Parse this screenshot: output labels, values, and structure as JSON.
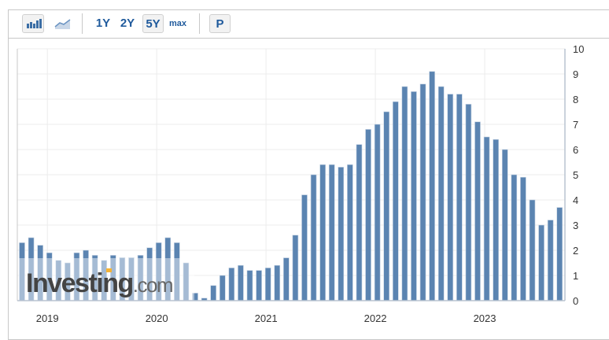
{
  "toolbar": {
    "chart_type_buttons": [
      {
        "icon": "bar-chart-icon",
        "selected": true
      },
      {
        "icon": "area-chart-icon",
        "selected": false
      }
    ],
    "ranges": [
      {
        "label": "1Y",
        "selected": false
      },
      {
        "label": "2Y",
        "selected": false
      },
      {
        "label": "5Y",
        "selected": true
      },
      {
        "label": "max",
        "selected": false
      }
    ],
    "p_label": "P"
  },
  "watermark": "Investing.com",
  "colors": {
    "bar": "#5b84b1",
    "grid": "#ececec",
    "axis": "#b9c3d0"
  },
  "chart_data": {
    "type": "bar",
    "x_tick_labels": [
      "2019",
      "2020",
      "2021",
      "2022",
      "2023"
    ],
    "values": [
      2.3,
      2.5,
      2.2,
      1.9,
      1.6,
      1.5,
      1.9,
      2.0,
      1.8,
      1.6,
      1.8,
      1.7,
      1.7,
      1.8,
      2.1,
      2.3,
      2.5,
      2.3,
      1.5,
      0.3,
      0.1,
      0.6,
      1.0,
      1.3,
      1.4,
      1.2,
      1.2,
      1.3,
      1.4,
      1.7,
      2.6,
      4.2,
      5.0,
      5.4,
      5.4,
      5.3,
      5.4,
      6.2,
      6.8,
      7.0,
      7.5,
      7.9,
      8.5,
      8.3,
      8.6,
      9.1,
      8.5,
      8.2,
      8.2,
      7.8,
      7.1,
      6.5,
      6.4,
      6.0,
      5.0,
      4.9,
      4.0,
      3.0,
      3.2,
      3.7
    ],
    "ylim": [
      0,
      10
    ],
    "y_ticks": [
      0,
      1,
      2,
      3,
      4,
      5,
      6,
      7,
      8,
      9,
      10
    ],
    "y_axis_side": "right",
    "grid": true
  }
}
